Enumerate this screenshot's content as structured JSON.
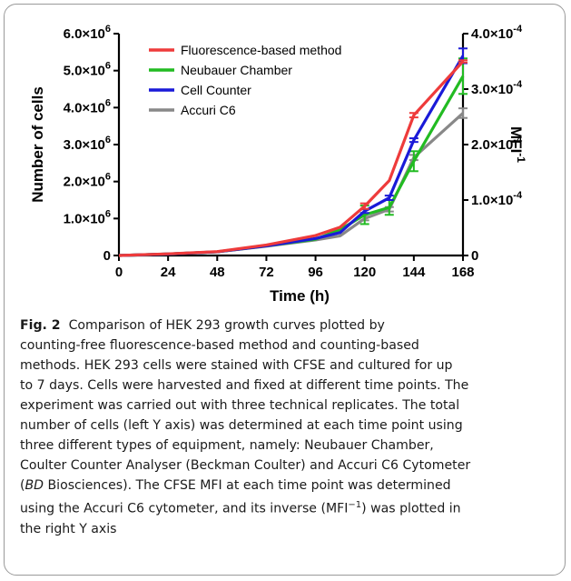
{
  "chart_data": {
    "type": "line",
    "xlabel": "Time (h)",
    "ylabel": "Number of cells",
    "y2label": "MFI-1",
    "x": [
      0,
      24,
      48,
      72,
      96,
      108,
      120,
      132,
      144,
      168
    ],
    "x_ticks": [
      "0",
      "24",
      "48",
      "72",
      "96",
      "120",
      "144",
      "168"
    ],
    "ylim": [
      0,
      6000000
    ],
    "y_ticks": [
      "0",
      "1.0×10^6",
      "2.0×10^6",
      "3.0×10^6",
      "4.0×10^6",
      "5.0×10^6",
      "6.0×10^6"
    ],
    "y2lim": [
      0,
      0.0004
    ],
    "y2_ticks": [
      "0",
      "1.0×10^-4",
      "2.0×10^-4",
      "3.0×10^-4",
      "4.0×10^-4"
    ],
    "legend_position": "top-left",
    "series": [
      {
        "name": "Fluorescence-based method",
        "color": "#ee3b3b",
        "axis": "right",
        "values": [
          0,
          3e-06,
          7e-06,
          1.9e-05,
          3.6e-05,
          5.1e-05,
          8.9e-05,
          0.000135,
          0.000253,
          0.00035
        ],
        "errors": [
          0,
          0,
          0,
          0,
          0,
          0,
          5e-06,
          0,
          4e-06,
          2e-06
        ]
      },
      {
        "name": "Neubauer Chamber",
        "color": "#22bb22",
        "axis": "left",
        "values": [
          0,
          40000,
          100000,
          260000,
          440000,
          700000,
          1100000,
          1300000,
          2550000,
          4850000
        ],
        "errors": [
          0,
          0,
          0,
          0,
          0,
          0,
          250000,
          200000,
          270000,
          480000
        ]
      },
      {
        "name": "Cell Counter",
        "color": "#1a1ad8",
        "axis": "left",
        "values": [
          0,
          40000,
          100000,
          260000,
          460000,
          620000,
          1200000,
          1560000,
          3120000,
          5400000
        ],
        "errors": [
          0,
          0,
          0,
          0,
          0,
          0,
          50000,
          60000,
          50000,
          200000
        ]
      },
      {
        "name": "Accuri C6",
        "color": "#888888",
        "axis": "left",
        "values": [
          0,
          40000,
          100000,
          250000,
          420000,
          530000,
          1000000,
          1250000,
          2650000,
          3850000
        ],
        "errors": [
          0,
          0,
          0,
          0,
          0,
          0,
          50000,
          60000,
          70000,
          130000
        ]
      }
    ]
  },
  "caption": {
    "label": "Fig. 2",
    "lines": [
      "Comparison of HEK 293 growth curves plotted by",
      "counting-free fluorescence-based method and counting-based",
      "methods. HEK 293 cells were stained with CFSE and cultured for up",
      "to 7 days. Cells were harvested and fixed at different time points. The",
      "experiment was carried out with three technical replicates. The total",
      "number of cells (left Y axis) was determined at each time point using",
      "three different types of equipment, namely: Neubauer Chamber,",
      "Coulter Counter Analyser (Beckman Coulter) and Accuri C6 Cytometer",
      "(",
      "BD",
      " Biosciences). The CFSE MFI at each time point was determined",
      "using the Accuri C6 cytometer, and its inverse (MFI",
      "−1",
      ") was plotted in",
      "the right Y axis"
    ]
  }
}
